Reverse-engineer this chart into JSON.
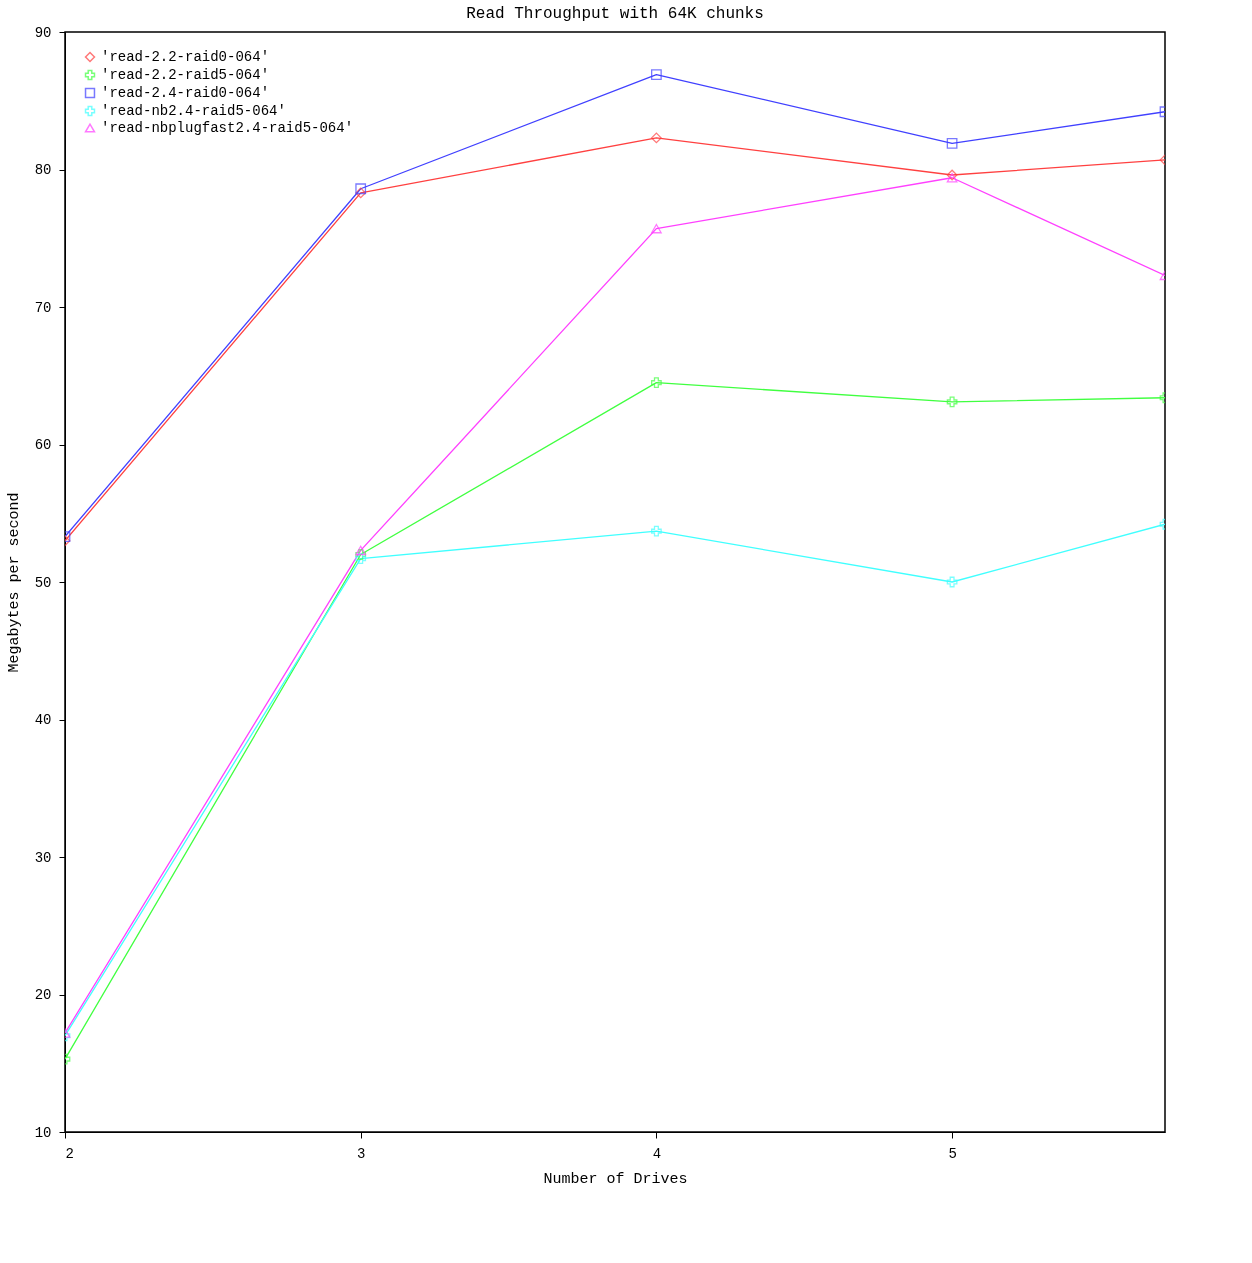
{
  "chart_data": {
    "type": "line",
    "title": "Read Throughput with 64K chunks",
    "xlabel": "Number of Drives",
    "ylabel": "Megabytes per second",
    "x": [
      2,
      3,
      4,
      5,
      5.72
    ],
    "xlim": [
      2,
      5.72
    ],
    "xticks": [
      2,
      3,
      4,
      5
    ],
    "ylim": [
      10,
      90
    ],
    "yticks": [
      10,
      20,
      30,
      40,
      50,
      60,
      70,
      80,
      90
    ],
    "grid": false,
    "legend": "top left",
    "series": [
      {
        "name": "'read-2.2-raid0-064'",
        "color": "#ff4040",
        "marker": "diamond",
        "values": [
          53.0,
          78.3,
          82.3,
          79.6,
          80.7
        ]
      },
      {
        "name": "'read-2.2-raid5-064'",
        "color": "#40ff40",
        "marker": "cross",
        "values": [
          15.3,
          52.0,
          64.5,
          63.1,
          63.4
        ]
      },
      {
        "name": "'read-2.4-raid0-064'",
        "color": "#4040ff",
        "marker": "square",
        "values": [
          53.3,
          78.6,
          86.9,
          81.9,
          84.2
        ]
      },
      {
        "name": "'read-nb2.4-raid5-064'",
        "color": "#40ffff",
        "marker": "cross",
        "values": [
          17.0,
          51.7,
          53.7,
          50.0,
          54.2
        ]
      },
      {
        "name": "'read-nbplugfast2.4-raid5-064'",
        "color": "#ff40ff",
        "marker": "triangle",
        "values": [
          17.2,
          52.3,
          75.7,
          79.4,
          72.3
        ]
      }
    ]
  }
}
